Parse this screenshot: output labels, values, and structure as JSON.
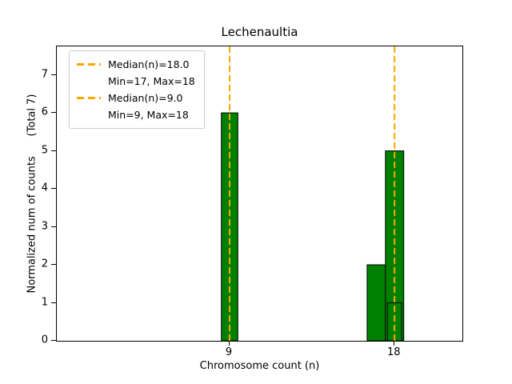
{
  "chart_data": {
    "type": "bar",
    "title": "Lechenaultia",
    "xlabel": "Chromosome count (n)",
    "ylabel": "Normalized num of counts      (Total 7)",
    "xlim": [
      -0.43,
      21.7
    ],
    "ylim": [
      0,
      7.75
    ],
    "xticks": [
      9,
      18
    ],
    "yticks": [
      0,
      1,
      2,
      3,
      4,
      5,
      6,
      7
    ],
    "bar_color": "#008000",
    "bar_edge_color": "#000000",
    "vline_color": "#ffa500",
    "vlines": [
      9,
      18
    ],
    "bars": [
      {
        "x": 9,
        "width": 0.9,
        "height": 6,
        "fill": "solid"
      },
      {
        "x": 17,
        "width": 1.0,
        "height": 2,
        "fill": "solid"
      },
      {
        "x": 18,
        "width": 1.0,
        "height": 5,
        "fill": "solid"
      },
      {
        "x": 18,
        "width": 0.78,
        "height": 1,
        "fill": "none"
      }
    ],
    "grid": false,
    "legend_position": "upper-left"
  },
  "legend": {
    "entries": [
      {
        "line1": "Median(n)=18.0",
        "line2": "Min=17, Max=18"
      },
      {
        "line1": "Median(n)=9.0",
        "line2": "Min=9, Max=18"
      }
    ]
  }
}
